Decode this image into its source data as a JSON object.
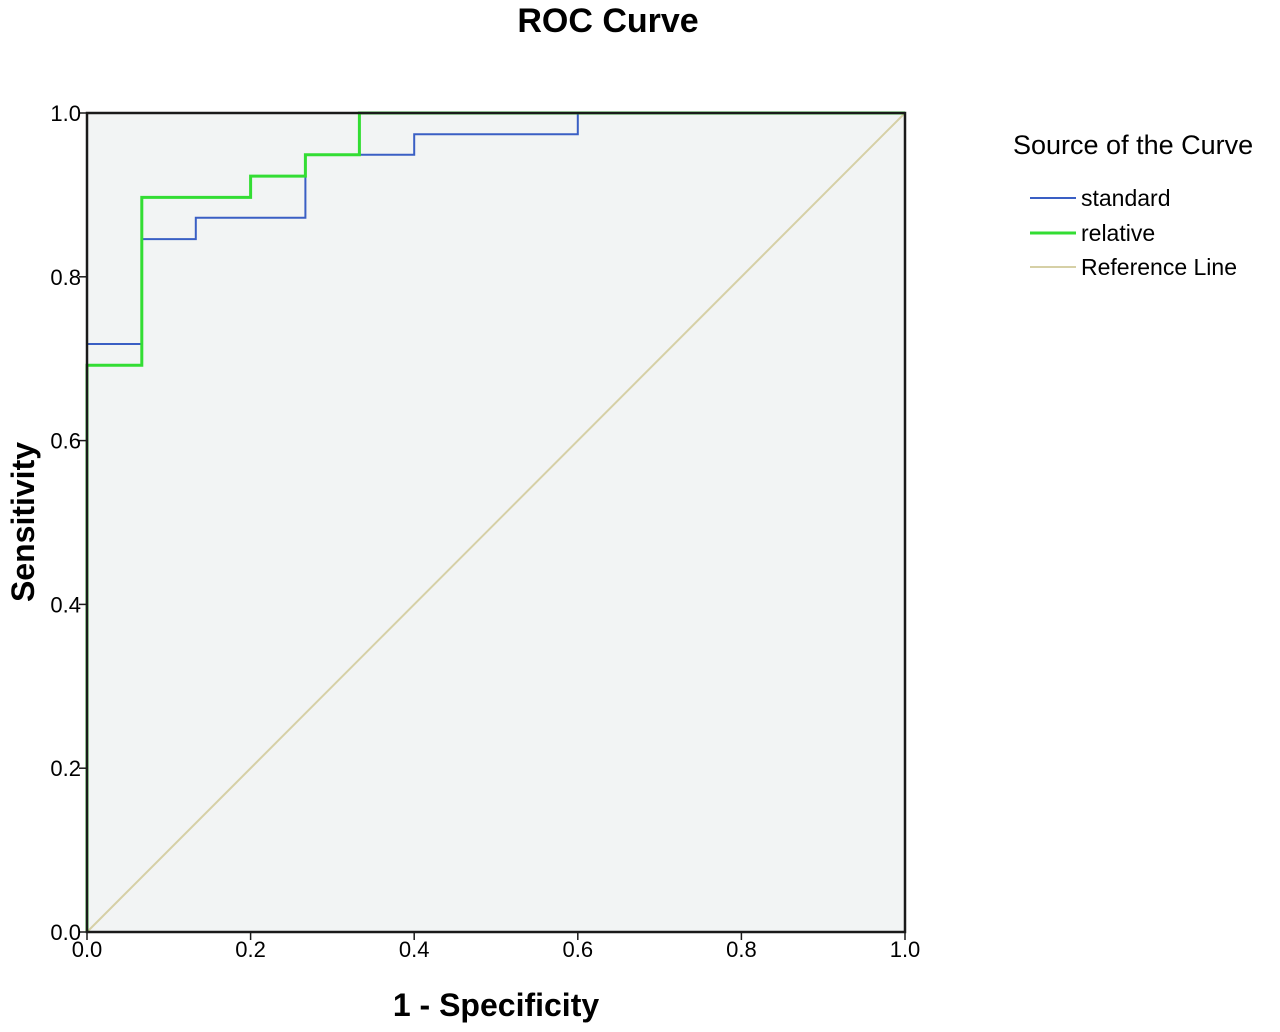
{
  "chart_data": {
    "type": "line",
    "title": "ROC Curve",
    "xlabel": "1 - Specificity",
    "ylabel": "Sensitivity",
    "xlim": [
      0,
      1
    ],
    "ylim": [
      0,
      1
    ],
    "x_ticks": [
      "0.0",
      "0.2",
      "0.4",
      "0.6",
      "0.8",
      "1.0"
    ],
    "y_ticks": [
      "0.0",
      "0.2",
      "0.4",
      "0.6",
      "0.8",
      "1.0"
    ],
    "grid": false,
    "legend": {
      "title": "Source of the Curve",
      "placement": "right"
    },
    "series": [
      {
        "name": "standard",
        "color": "#3a5fc4",
        "points": [
          [
            0,
            0
          ],
          [
            0,
            0.718
          ],
          [
            0.067,
            0.718
          ],
          [
            0.067,
            0.846
          ],
          [
            0.133,
            0.846
          ],
          [
            0.133,
            0.872
          ],
          [
            0.267,
            0.872
          ],
          [
            0.267,
            0.949
          ],
          [
            0.4,
            0.949
          ],
          [
            0.4,
            0.974
          ],
          [
            0.6,
            0.974
          ],
          [
            0.6,
            1.0
          ],
          [
            1.0,
            1.0
          ]
        ]
      },
      {
        "name": "relative",
        "color": "#33dd33",
        "points": [
          [
            0,
            0
          ],
          [
            0,
            0.692
          ],
          [
            0.067,
            0.692
          ],
          [
            0.067,
            0.897
          ],
          [
            0.2,
            0.897
          ],
          [
            0.2,
            0.923
          ],
          [
            0.267,
            0.923
          ],
          [
            0.267,
            0.949
          ],
          [
            0.333,
            0.949
          ],
          [
            0.333,
            1.0
          ],
          [
            1.0,
            1.0
          ]
        ]
      },
      {
        "name": "Reference Line",
        "color": "#d6d0a6",
        "points": [
          [
            0,
            0
          ],
          [
            1,
            1
          ]
        ]
      }
    ]
  }
}
